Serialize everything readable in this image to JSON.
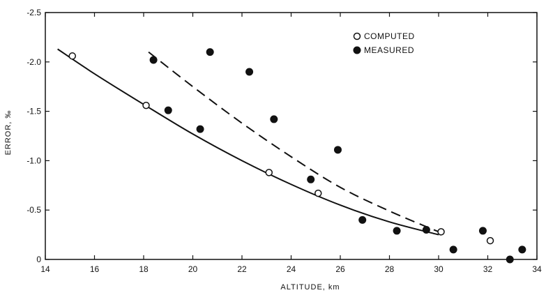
{
  "chart_data": {
    "type": "scatter",
    "xlabel": "ALTITUDE, km",
    "ylabel": "ERROR, ‰",
    "xlim": [
      14,
      34
    ],
    "ylim": [
      0,
      -2.5
    ],
    "x_ticks": [
      14,
      16,
      18,
      20,
      22,
      24,
      26,
      28,
      30,
      32,
      34
    ],
    "x_tick_labels": [
      "14",
      "16",
      "18",
      "20",
      "22",
      "24",
      "26",
      "28",
      "30",
      "32",
      "34"
    ],
    "y_ticks": [
      0,
      -0.5,
      -1.0,
      -1.5,
      -2.0,
      -2.5
    ],
    "y_tick_labels": [
      "0",
      "-0.5",
      "-1.0",
      "-1.5",
      "-2.0",
      "-2.5"
    ],
    "grid": false,
    "legend_position": "top-right",
    "series": [
      {
        "name": "COMPUTED",
        "marker": "open-circle",
        "color": "#111111",
        "x": [
          15.1,
          18.1,
          23.1,
          25.1,
          30.1,
          32.1
        ],
        "y": [
          -2.06,
          -1.56,
          -0.88,
          -0.67,
          -0.28,
          -0.19
        ]
      },
      {
        "name": "MEASURED",
        "marker": "filled-circle",
        "color": "#111111",
        "x": [
          18.4,
          19.0,
          20.3,
          20.7,
          22.3,
          23.3,
          24.8,
          25.9,
          26.9,
          28.3,
          29.5,
          30.6,
          31.8,
          32.9,
          33.4
        ],
        "y": [
          -2.02,
          -1.51,
          -1.32,
          -2.1,
          -1.9,
          -1.42,
          -0.81,
          -1.11,
          -0.4,
          -0.29,
          -0.3,
          -0.1,
          -0.29,
          0.0,
          -0.1
        ]
      }
    ],
    "curves": [
      {
        "style": "solid",
        "color": "#111111",
        "x": [
          14.5,
          16,
          18,
          20,
          22,
          24,
          26,
          28,
          30
        ],
        "y": [
          -2.13,
          -1.88,
          -1.57,
          -1.27,
          -1.0,
          -0.76,
          -0.55,
          -0.38,
          -0.25
        ]
      },
      {
        "style": "dashed",
        "color": "#111111",
        "x": [
          18.2,
          20,
          22,
          24,
          26,
          28,
          30
        ],
        "y": [
          -2.1,
          -1.75,
          -1.38,
          -1.04,
          -0.73,
          -0.49,
          -0.28
        ]
      }
    ]
  }
}
